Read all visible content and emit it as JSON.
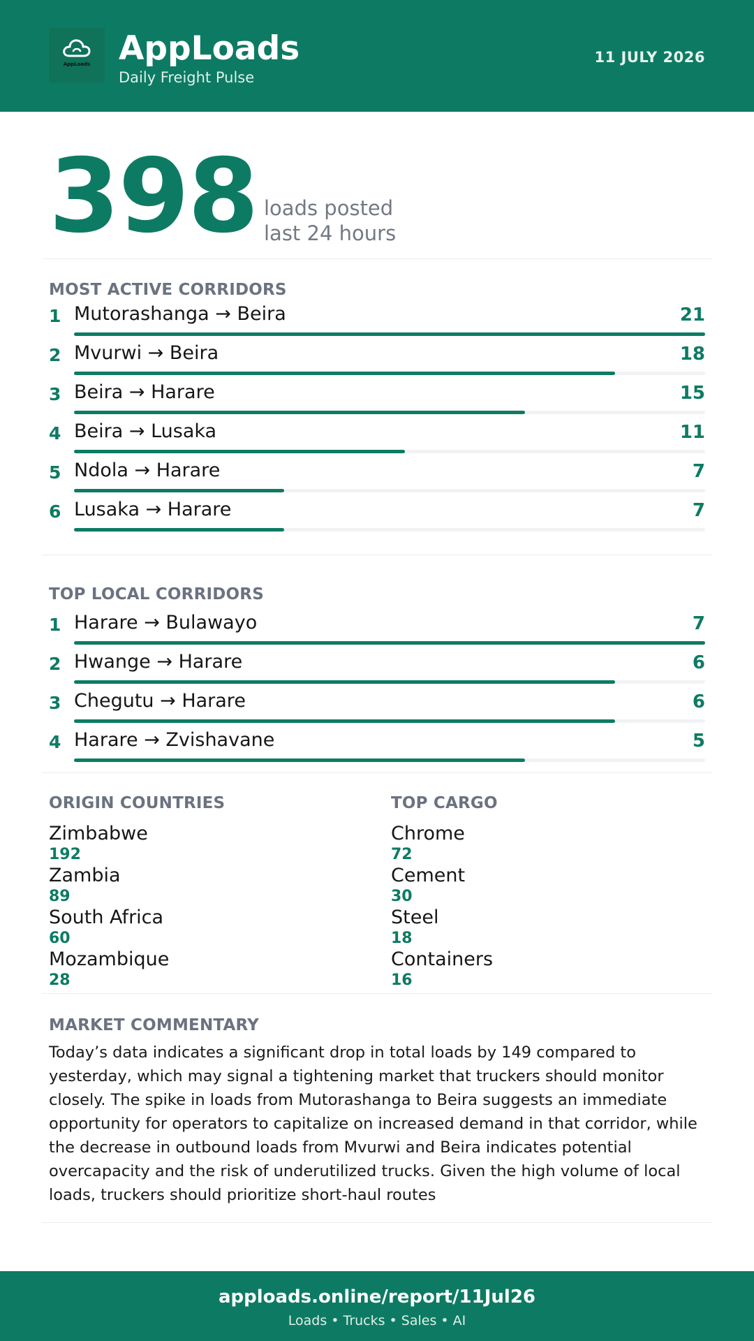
{
  "header": {
    "logo_text": "AppLoads",
    "brand": "AppLoads",
    "tagline": "Daily Freight Pulse",
    "date": "11 JULY 2026",
    "logo_icon": "cloud-icon"
  },
  "hero": {
    "value": "398",
    "caption_line1": "loads posted",
    "caption_line2": "last 24 hours"
  },
  "most_active": {
    "title": "MOST ACTIVE CORRIDORS",
    "max": 21,
    "items": [
      {
        "rank": "1",
        "route": "Mutorashanga → Beira",
        "count": "21",
        "value": 21
      },
      {
        "rank": "2",
        "route": "Mvurwi → Beira",
        "count": "18",
        "value": 18
      },
      {
        "rank": "3",
        "route": "Beira → Harare",
        "count": "15",
        "value": 15
      },
      {
        "rank": "4",
        "route": "Beira → Lusaka",
        "count": "11",
        "value": 11
      },
      {
        "rank": "5",
        "route": "Ndola → Harare",
        "count": "7",
        "value": 7
      },
      {
        "rank": "6",
        "route": "Lusaka → Harare",
        "count": "7",
        "value": 7
      }
    ]
  },
  "local": {
    "title": "TOP LOCAL CORRIDORS",
    "max": 7,
    "items": [
      {
        "rank": "1",
        "route": "Harare → Bulawayo",
        "count": "7",
        "value": 7
      },
      {
        "rank": "2",
        "route": "Hwange → Harare",
        "count": "6",
        "value": 6
      },
      {
        "rank": "3",
        "route": "Chegutu → Harare",
        "count": "6",
        "value": 6
      },
      {
        "rank": "4",
        "route": "Harare → Zvishavane",
        "count": "5",
        "value": 5
      }
    ]
  },
  "origins": {
    "title": "ORIGIN COUNTRIES",
    "items": [
      {
        "name": "Zimbabwe",
        "value": "192"
      },
      {
        "name": "Zambia",
        "value": "89"
      },
      {
        "name": "South Africa",
        "value": "60"
      },
      {
        "name": "Mozambique",
        "value": "28"
      }
    ]
  },
  "cargo": {
    "title": "TOP CARGO",
    "items": [
      {
        "name": "Chrome",
        "value": "72"
      },
      {
        "name": "Cement",
        "value": "30"
      },
      {
        "name": "Steel",
        "value": "18"
      },
      {
        "name": "Containers",
        "value": "16"
      }
    ]
  },
  "commentary": {
    "title": "MARKET COMMENTARY",
    "text": "Today’s data indicates a significant drop in total loads by 149 compared to yesterday, which may signal a tightening market that truckers should monitor closely. The spike in loads from Mutorashanga to Beira suggests an immediate opportunity for operators to capitalize on increased demand in that corridor, while the decrease in outbound loads from Mvurwi and Beira indicates potential overcapacity and the risk of underutilized trucks. Given the high volume of local loads, truckers should prioritize short-haul routes"
  },
  "footer": {
    "url": "apploads.online/report/11Jul26",
    "sub": "Loads • Trucks • Sales • AI"
  },
  "colors": {
    "brand": "#0d7b63",
    "muted": "#6b7280",
    "track": "#f1f2f4"
  }
}
